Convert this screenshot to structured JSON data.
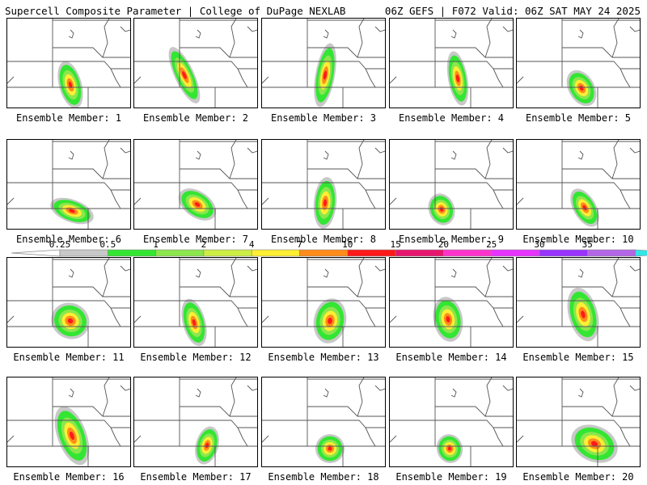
{
  "header": {
    "left": "Supercell Composite Parameter | College of DuPage NEXLAB",
    "right": "06Z GEFS | F072 Valid: 06Z SAT MAY 24 2025"
  },
  "colorbar": {
    "labels": [
      "0.25",
      "0.5",
      "1",
      "2",
      "4",
      "7",
      "10",
      "15",
      "20",
      "25",
      "30",
      "35"
    ],
    "colors": [
      "#c8c8c8",
      "#33e633",
      "#8ce64d",
      "#ccee44",
      "#ffee33",
      "#ff8c1a",
      "#ff1a1a",
      "#e6156e",
      "#ff33cc",
      "#e633ff",
      "#9933ff",
      "#b366e6",
      "#33e6e6"
    ]
  },
  "members": [
    {
      "label": "Ensemble Member: 1"
    },
    {
      "label": "Ensemble Member: 2"
    },
    {
      "label": "Ensemble Member: 3"
    },
    {
      "label": "Ensemble Member: 4"
    },
    {
      "label": "Ensemble Member: 5"
    },
    {
      "label": "Ensemble Member: 6"
    },
    {
      "label": "Ensemble Member: 7"
    },
    {
      "label": "Ensemble Member: 8"
    },
    {
      "label": "Ensemble Member: 9"
    },
    {
      "label": "Ensemble Member: 10"
    },
    {
      "label": "Ensemble Member: 11"
    },
    {
      "label": "Ensemble Member: 12"
    },
    {
      "label": "Ensemble Member: 13"
    },
    {
      "label": "Ensemble Member: 14"
    },
    {
      "label": "Ensemble Member: 15"
    },
    {
      "label": "Ensemble Member: 16"
    },
    {
      "label": "Ensemble Member: 17"
    },
    {
      "label": "Ensemble Member: 18"
    },
    {
      "label": "Ensemble Member: 19"
    },
    {
      "label": "Ensemble Member: 20"
    }
  ]
}
